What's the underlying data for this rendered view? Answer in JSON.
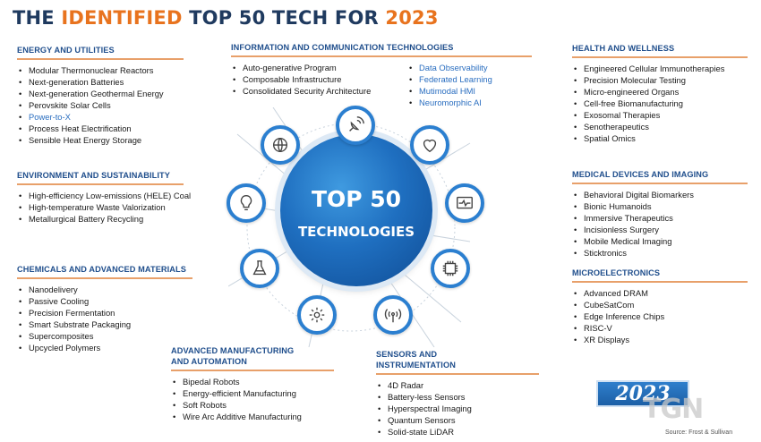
{
  "title": {
    "part1": "THE ",
    "highlight": "IDENTIFIED",
    "part2": " TOP 50 TECH FOR ",
    "year": "2023"
  },
  "center": {
    "line1": "TOP 50",
    "line2": "TECHNOLOGIES"
  },
  "categories": {
    "energy": {
      "heading": "ENERGY AND UTILITIES",
      "items": [
        "Modular Thermonuclear Reactors",
        "Next-generation Batteries",
        "Next-generation Geothermal Energy",
        "Perovskite Solar Cells",
        "Power-to-X",
        "Process Heat Electrification",
        "Sensible Heat Energy Storage"
      ]
    },
    "environment": {
      "heading": "ENVIRONMENT AND SUSTAINABILITY",
      "items": [
        "High-efficiency Low-emissions (HELE) Coal",
        "High-temperature Waste Valorization",
        "Metallurgical Battery Recycling"
      ]
    },
    "chemicals": {
      "heading": "CHEMICALS AND ADVANCED MATERIALS",
      "items": [
        "Nanodelivery",
        "Passive Cooling",
        "Precision Fermentation",
        "Smart Substrate Packaging",
        "Supercomposites",
        "Upcycled Polymers"
      ]
    },
    "manufacturing": {
      "heading1": "ADVANCED MANUFACTURING",
      "heading2": "AND AUTOMATION",
      "items": [
        "Bipedal Robots",
        "Energy-efficient Manufacturing",
        "Soft Robots",
        "Wire Arc Additive Manufacturing"
      ]
    },
    "ict": {
      "heading": "INFORMATION AND COMMUNICATION TECHNOLOGIES",
      "left": [
        "Auto-generative Program",
        "Composable Infrastructure",
        "Consolidated Security Architecture"
      ],
      "right": [
        "Data Observability",
        "Federated Learning",
        "Mutimodal HMI",
        "Neuromorphic AI"
      ]
    },
    "sensors": {
      "heading1": "SENSORS AND",
      "heading2": "INSTRUMENTATION",
      "items": [
        "4D Radar",
        "Battery-less Sensors",
        "Hyperspectral Imaging",
        "Quantum Sensors",
        "Solid-state LiDAR"
      ]
    },
    "health": {
      "heading": "HEALTH AND WELLNESS",
      "items": [
        "Engineered Cellular Immunotherapies",
        "Precision Molecular Testing",
        "Micro-engineered Organs",
        "Cell-free Biomanufacturing",
        "Exosomal Therapies",
        "Senotherapeutics",
        "Spatial Omics"
      ]
    },
    "medical": {
      "heading": "MEDICAL DEVICES AND IMAGING",
      "items": [
        "Behavioral Digital Biomarkers",
        "Bionic Humanoids",
        "Immersive Therapeutics",
        "Incisionless Surgery",
        "Mobile Medical Imaging",
        "Sticktronics"
      ]
    },
    "micro": {
      "heading": "MICROELECTRONICS",
      "items": [
        "Advanced DRAM",
        "CubeSatCom",
        "Edge Inference Chips",
        "RISC-V",
        "XR Displays"
      ]
    }
  },
  "badge": "2023",
  "watermark": "TGN",
  "source": "Source: Frost & Sullivan",
  "icons": [
    "globe-icon",
    "satellite-icon",
    "heart-icon",
    "lightbulb-icon",
    "monitor-heartbeat-icon",
    "flask-icon",
    "chip-icon",
    "gear-icon",
    "signal-tower-icon"
  ],
  "colors": {
    "accent": "#e8731e",
    "primary": "#1f4e8c",
    "node_border": "#2b7fd0",
    "rule": "#e8a06a",
    "highlight_item": "#2a6ec0"
  }
}
